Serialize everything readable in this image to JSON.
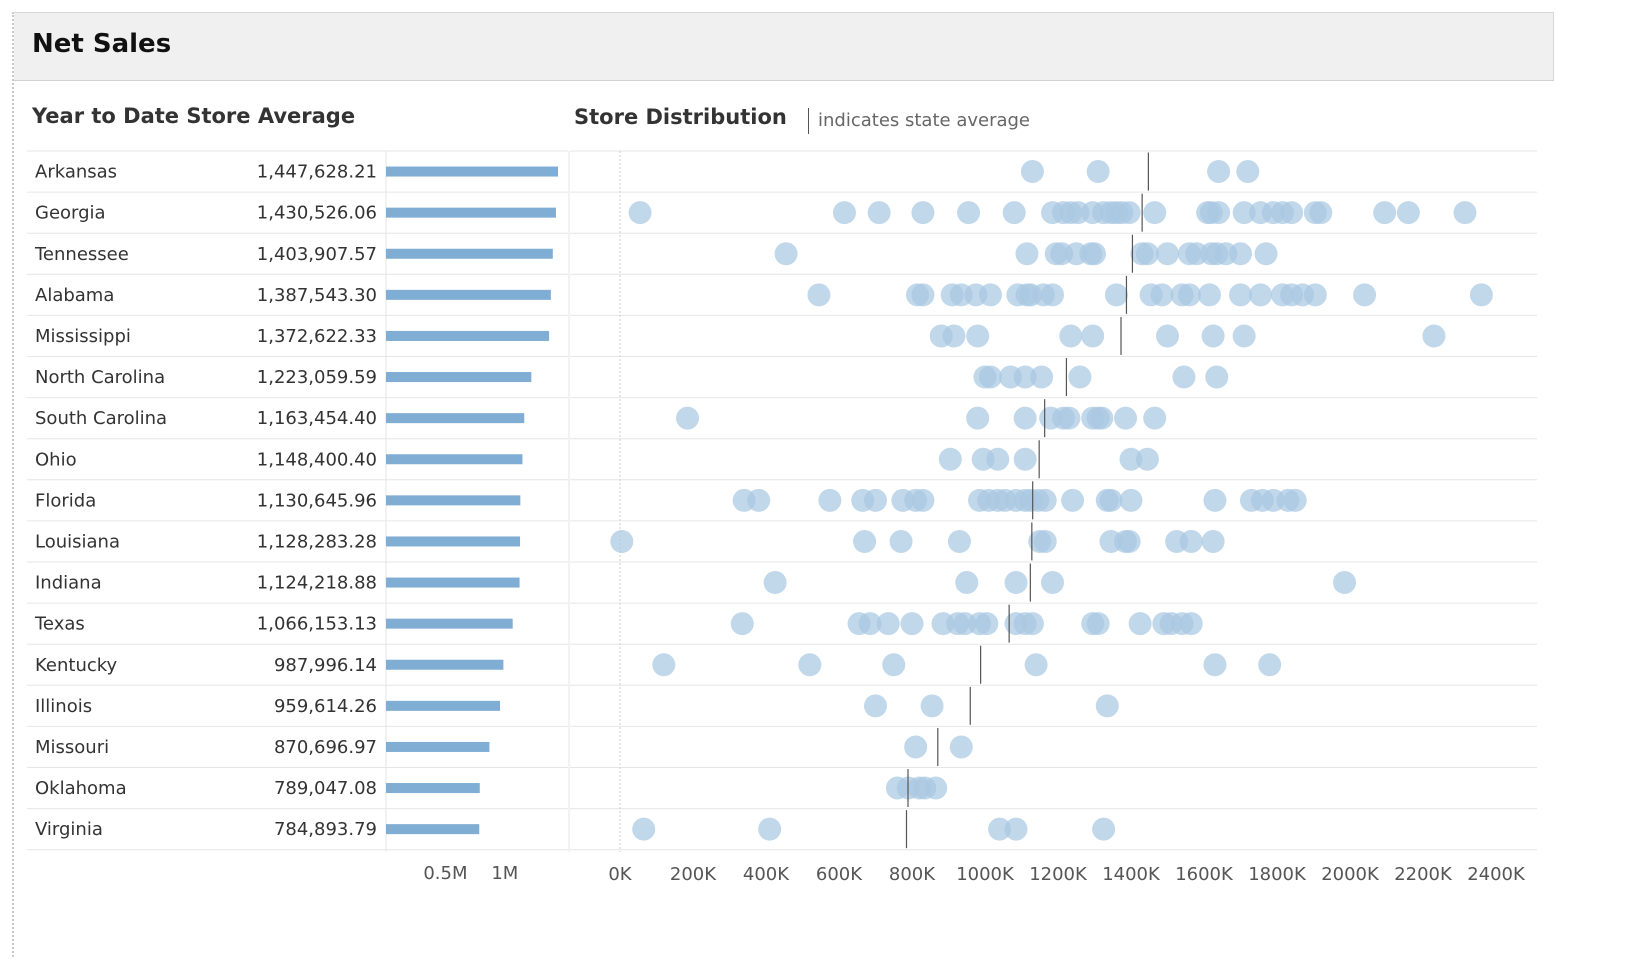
{
  "header": {
    "title": "Net Sales"
  },
  "panels": {
    "ytd_title": "Year to Date Store Average",
    "dist_title": "Store Distribution",
    "dist_legend_note": "indicates state average"
  },
  "colors": {
    "bar": "#7fadd4",
    "dot": "#a9c7e2",
    "avg_line": "#555555",
    "grid": "#e6e6e6"
  },
  "chart_data": [
    {
      "type": "bar",
      "title": "Year to Date Store Average",
      "categories": [
        "Arkansas",
        "Georgia",
        "Tennessee",
        "Alabama",
        "Mississippi",
        "North Carolina",
        "South Carolina",
        "Ohio",
        "Florida",
        "Louisiana",
        "Indiana",
        "Texas",
        "Kentucky",
        "Illinois",
        "Missouri",
        "Oklahoma",
        "Virginia"
      ],
      "values": [
        1447628.21,
        1430526.06,
        1403907.57,
        1387543.3,
        1372622.33,
        1223059.59,
        1163454.4,
        1148400.4,
        1130645.96,
        1128283.28,
        1124218.88,
        1066153.13,
        987996.14,
        959614.26,
        870696.97,
        789047.08,
        784893.79
      ],
      "value_labels": [
        "1,447,628.21",
        "1,430,526.06",
        "1,403,907.57",
        "1,387,543.30",
        "1,372,622.33",
        "1,223,059.59",
        "1,163,454.40",
        "1,148,400.40",
        "1,130,645.96",
        "1,128,283.28",
        "1,124,218.88",
        "1,066,153.13",
        "987,996.14",
        "959,614.26",
        "870,696.97",
        "789,047.08",
        "784,893.79"
      ],
      "x_ticks": [
        500000,
        1000000
      ],
      "x_tick_labels": [
        "0.5M",
        "1M"
      ],
      "xlim": [
        0,
        1500000
      ],
      "orientation": "horizontal"
    },
    {
      "type": "scatter",
      "title": "Store Distribution",
      "categories": [
        "Arkansas",
        "Georgia",
        "Tennessee",
        "Alabama",
        "Mississippi",
        "North Carolina",
        "South Carolina",
        "Ohio",
        "Florida",
        "Louisiana",
        "Indiana",
        "Texas",
        "Kentucky",
        "Illinois",
        "Missouri",
        "Oklahoma",
        "Virginia"
      ],
      "state_averages": [
        1447628.21,
        1430526.06,
        1403907.57,
        1387543.3,
        1372622.33,
        1223059.59,
        1163454.4,
        1148400.4,
        1130645.96,
        1128283.28,
        1124218.88,
        1066153.13,
        987996.14,
        959614.26,
        870696.97,
        789047.08,
        784893.79
      ],
      "stores": [
        [
          1130000,
          1310000,
          1640000,
          1720000
        ],
        [
          55000,
          615000,
          710000,
          830000,
          955000,
          1080000,
          1185000,
          1215000,
          1235000,
          1255000,
          1295000,
          1325000,
          1345000,
          1360000,
          1375000,
          1395000,
          1465000,
          1610000,
          1620000,
          1640000,
          1710000,
          1755000,
          1790000,
          1815000,
          1840000,
          1905000,
          1920000,
          2095000,
          2160000,
          2315000
        ],
        [
          455000,
          1115000,
          1195000,
          1210000,
          1250000,
          1290000,
          1300000,
          1430000,
          1445000,
          1500000,
          1560000,
          1580000,
          1620000,
          1635000,
          1660000,
          1700000,
          1770000
        ],
        [
          545000,
          815000,
          830000,
          910000,
          935000,
          975000,
          1015000,
          1090000,
          1115000,
          1125000,
          1160000,
          1185000,
          1360000,
          1455000,
          1485000,
          1540000,
          1560000,
          1615000,
          1700000,
          1755000,
          1815000,
          1840000,
          1870000,
          1905000,
          2040000,
          2360000
        ],
        [
          880000,
          915000,
          980000,
          1235000,
          1295000,
          1500000,
          1625000,
          1710000,
          2230000
        ],
        [
          1000000,
          1015000,
          1070000,
          1110000,
          1155000,
          1260000,
          1545000,
          1635000
        ],
        [
          185000,
          980000,
          1110000,
          1180000,
          1215000,
          1230000,
          1295000,
          1310000,
          1320000,
          1385000,
          1465000
        ],
        [
          905000,
          995000,
          1035000,
          1110000,
          1400000,
          1445000
        ],
        [
          340000,
          380000,
          575000,
          665000,
          700000,
          775000,
          810000,
          830000,
          985000,
          1010000,
          1035000,
          1055000,
          1085000,
          1110000,
          1125000,
          1145000,
          1165000,
          1240000,
          1335000,
          1345000,
          1400000,
          1630000,
          1730000,
          1760000,
          1790000,
          1830000,
          1850000
        ],
        [
          5000,
          670000,
          770000,
          930000,
          1150000,
          1165000,
          1345000,
          1385000,
          1395000,
          1525000,
          1565000,
          1625000
        ],
        [
          425000,
          950000,
          1085000,
          1185000,
          1985000
        ],
        [
          335000,
          655000,
          685000,
          735000,
          800000,
          885000,
          925000,
          945000,
          985000,
          1005000,
          1085000,
          1110000,
          1130000,
          1295000,
          1310000,
          1425000,
          1490000,
          1510000,
          1540000,
          1565000
        ],
        [
          120000,
          520000,
          750000,
          1140000,
          1630000,
          1780000
        ],
        [
          700000,
          855000,
          1335000
        ],
        [
          810000,
          935000
        ],
        [
          760000,
          790000,
          820000,
          835000,
          865000
        ],
        [
          65000,
          410000,
          1040000,
          1085000,
          1325000
        ]
      ],
      "x_ticks": [
        0,
        200000,
        400000,
        600000,
        800000,
        1000000,
        1200000,
        1400000,
        1600000,
        1800000,
        2000000,
        2200000,
        2400000
      ],
      "x_tick_labels": [
        "0K",
        "200K",
        "400K",
        "600K",
        "800K",
        "1000K",
        "1200K",
        "1400K",
        "1600K",
        "1800K",
        "2000K",
        "2200K",
        "2400K"
      ],
      "xlim": [
        -140000,
        2500000
      ]
    }
  ]
}
